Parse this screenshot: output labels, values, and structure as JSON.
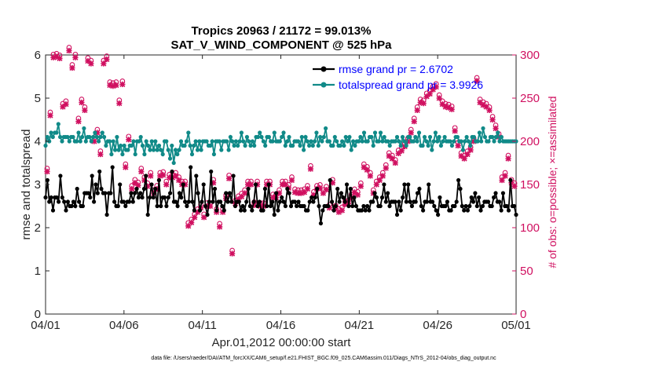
{
  "chart_data": {
    "type": "line",
    "title": "Tropics 20963 / 21172 = 99.013%",
    "subtitle": "SAT_V_WIND_COMPONENT @ 525 hPa",
    "xlabel": "Apr.01,2012 00:00:00 start",
    "ylabel": "rmse and totalspread",
    "y2label": "# of obs: o=possible; ×=assimilated",
    "x_ticks": [
      "04/01",
      "04/06",
      "04/11",
      "04/16",
      "04/21",
      "04/26",
      "05/01"
    ],
    "xlim": [
      0,
      30
    ],
    "ylim": [
      0,
      6
    ],
    "y_ticks": [
      "0",
      "1",
      "2",
      "3",
      "4",
      "5",
      "6"
    ],
    "y2lim": [
      0,
      300
    ],
    "y2_ticks": [
      "0",
      "50",
      "100",
      "150",
      "200",
      "250",
      "300"
    ],
    "footer": "data file: /Users/raeder/DAI/ATM_forcXX/CAM6_setup/f.e21.FHIST_BGC.f09_025.CAM6assim.011/Diags_NTrS_2012-04/obs_diag_output.nc",
    "legend_position": "top-right",
    "series": [
      {
        "name": "rmse grand pr = 2.6702",
        "axis": "left",
        "color": "#000000",
        "values": [
          2.7,
          3.1,
          2.6,
          2.7,
          2.4,
          2.7,
          2.7,
          2.6,
          3.2,
          2.7,
          2.6,
          2.4,
          2.6,
          2.5,
          2.5,
          2.6,
          2.5,
          2.9,
          2.6,
          2.5,
          2.5,
          2.8,
          2.8,
          2.8,
          2.7,
          3.2,
          2.6,
          3.0,
          2.8,
          3.3,
          2.9,
          2.8,
          2.8,
          2.3,
          2.8,
          2.8,
          3.4,
          2.6,
          2.5,
          2.5,
          3.0,
          2.6,
          2.6,
          2.5,
          2.6,
          2.6,
          2.8,
          2.6,
          2.8,
          2.9,
          2.7,
          2.8,
          2.7,
          2.9,
          3.2,
          2.3,
          2.7,
          3.0,
          2.7,
          2.9,
          2.5,
          3.1,
          2.5,
          2.7,
          2.7,
          2.5,
          2.7,
          2.8,
          3.3,
          2.6,
          2.6,
          2.5,
          2.8,
          2.7,
          3.0,
          2.6,
          2.5,
          2.6,
          3.4,
          2.6,
          2.4,
          3.2,
          2.8,
          2.4,
          2.6,
          3.0,
          2.5,
          2.3,
          2.6,
          3.3,
          2.6,
          2.9,
          2.4,
          2.6,
          2.6,
          2.5,
          2.4,
          2.8,
          2.6,
          2.8,
          2.6,
          3.2,
          2.5,
          2.6,
          2.6,
          2.4,
          2.5,
          2.4,
          2.6,
          2.9,
          2.5,
          2.4,
          2.6,
          3.0,
          2.5,
          2.6,
          2.4,
          2.4,
          2.9,
          2.5,
          3.0,
          2.5,
          2.6,
          2.3,
          2.8,
          2.4,
          2.6,
          2.7,
          2.6,
          2.5,
          2.9,
          2.8,
          2.5,
          2.6,
          2.6,
          2.5,
          2.6,
          2.5,
          2.5,
          2.5,
          2.4,
          2.4,
          2.6,
          2.7,
          2.6,
          2.7,
          2.9,
          2.5,
          2.1,
          2.4,
          2.5,
          2.5,
          2.5,
          3.1,
          2.6,
          2.4,
          2.5,
          2.9,
          2.6,
          2.8,
          2.7,
          2.6,
          3.0,
          2.5,
          2.9,
          2.5,
          2.7,
          2.5,
          2.4,
          2.4,
          2.4,
          2.5,
          2.4,
          2.5,
          2.4,
          2.6,
          2.6,
          2.8,
          2.7,
          2.5,
          2.5,
          2.7,
          3.0,
          2.6,
          2.8,
          2.5,
          2.6,
          2.6,
          2.6,
          2.3,
          2.6,
          2.4,
          2.7,
          3.0,
          2.6,
          3.0,
          2.6,
          2.5,
          2.6,
          2.6,
          2.8,
          2.9,
          2.5,
          2.4,
          2.6,
          2.6,
          3.0,
          2.6,
          2.6,
          2.5,
          2.4,
          2.3,
          2.7,
          2.5,
          2.5,
          2.5,
          2.6,
          2.4,
          2.4,
          2.5,
          2.5,
          2.6,
          3.1,
          2.9,
          2.5,
          2.4,
          2.5,
          2.4,
          2.5,
          2.7,
          2.6,
          2.8,
          2.5,
          2.7,
          2.4,
          2.5,
          2.6,
          2.6,
          2.6,
          2.5,
          2.5,
          2.7,
          2.8,
          2.6,
          2.6,
          2.4,
          2.8,
          2.5,
          2.5,
          2.4,
          3.1,
          2.5,
          2.5,
          2.3
        ]
      },
      {
        "name": "totalspread grand pr = 3.9926",
        "axis": "left",
        "color": "#108a88",
        "values": [
          3.9,
          4.1,
          4.0,
          4.2,
          4.1,
          4.2,
          4.2,
          4.4,
          4.1,
          4.0,
          4.1,
          4.1,
          4.1,
          4.0,
          4.1,
          4.1,
          4.0,
          4.0,
          4.2,
          4.0,
          4.1,
          4.3,
          4.0,
          4.1,
          4.1,
          4.0,
          4.1,
          4.2,
          4.1,
          4.0,
          4.1,
          4.2,
          4.1,
          3.9,
          4.0,
          4.0,
          3.7,
          4.0,
          3.8,
          4.1,
          3.8,
          3.9,
          3.7,
          3.9,
          3.8,
          3.8,
          3.9,
          3.9,
          4.0,
          3.7,
          4.0,
          4.0,
          4.1,
          3.9,
          3.7,
          4.0,
          3.9,
          3.8,
          4.0,
          3.8,
          4.0,
          3.8,
          3.9,
          3.8,
          3.7,
          4.0,
          4.0,
          3.8,
          3.6,
          3.9,
          3.5,
          3.8,
          3.7,
          3.8,
          4.0,
          3.9,
          3.9,
          4.0,
          4.2,
          3.9,
          3.7,
          3.9,
          4.0,
          3.8,
          4.0,
          3.8,
          4.0,
          4.0,
          4.0,
          3.9,
          3.9,
          4.0,
          3.7,
          4.0,
          4.0,
          4.0,
          3.8,
          4.0,
          4.0,
          4.0,
          3.8,
          4.1,
          4.0,
          3.9,
          4.0,
          3.9,
          4.0,
          4.2,
          4.0,
          3.9,
          4.1,
          4.0,
          3.9,
          4.0,
          3.9,
          4.1,
          4.1,
          4.2,
          4.1,
          4.0,
          3.9,
          4.1,
          4.1,
          4.0,
          4.0,
          4.2,
          4.0,
          4.0,
          4.0,
          4.1,
          4.2,
          3.9,
          4.0,
          4.1,
          3.9,
          3.9,
          4.0,
          4.0,
          4.0,
          3.9,
          4.1,
          3.8,
          4.1,
          4.0,
          3.9,
          4.0,
          3.9,
          4.0,
          4.2,
          3.9,
          4.1,
          4.0,
          4.1,
          4.3,
          4.0,
          4.0,
          3.9,
          3.9,
          4.1,
          4.0,
          3.9,
          3.9,
          4.0,
          3.9,
          4.1,
          4.0,
          4.1,
          3.8,
          4.0,
          3.9,
          4.0,
          4.0,
          4.1,
          4.0,
          4.2,
          4.0,
          4.0,
          4.1,
          4.1,
          3.9,
          4.2,
          4.0,
          4.0,
          4.2,
          4.0,
          4.1,
          4.0,
          4.0,
          3.9,
          4.0,
          4.0,
          4.0,
          4.1,
          4.0,
          3.9,
          4.1,
          4.0,
          3.9,
          4.1,
          4.1,
          4.0,
          4.0,
          4.1,
          4.0,
          4.2,
          3.9,
          3.9,
          4.1,
          4.0,
          3.9,
          4.1,
          3.8,
          4.0,
          4.2,
          4.0,
          4.1,
          3.9,
          4.0,
          4.1,
          4.0,
          4.0,
          4.0,
          3.9,
          4.0,
          4.1,
          4.1,
          4.0,
          4.0,
          3.8,
          4.0,
          4.1,
          4.0,
          3.9,
          4.1,
          4.1,
          4.0,
          4.0,
          4.2,
          4.0,
          4.3,
          4.1,
          4.0,
          4.0,
          4.1,
          4.1,
          4.0,
          4.1,
          4.2,
          4.0,
          4.1,
          4.0,
          4.0,
          4.0,
          4.0,
          4.0,
          4.0,
          4.0,
          4.0
        ]
      }
    ],
    "obs_markers": {
      "axis": "right",
      "color": "#d01060",
      "points": [
        [
          0.1,
          165
        ],
        [
          0.3,
          230
        ],
        [
          0.5,
          297
        ],
        [
          0.7,
          298
        ],
        [
          0.9,
          296
        ],
        [
          1.1,
          240
        ],
        [
          1.3,
          243
        ],
        [
          1.5,
          305
        ],
        [
          1.7,
          285
        ],
        [
          1.9,
          297
        ],
        [
          2.1,
          223
        ],
        [
          2.3,
          245
        ],
        [
          2.5,
          236
        ],
        [
          2.7,
          293
        ],
        [
          2.9,
          290
        ],
        [
          3.1,
          200
        ],
        [
          3.3,
          210
        ],
        [
          3.5,
          185
        ],
        [
          3.7,
          290
        ],
        [
          3.9,
          295
        ],
        [
          4.1,
          265
        ],
        [
          4.3,
          264
        ],
        [
          4.5,
          265
        ],
        [
          4.7,
          244
        ],
        [
          4.9,
          266
        ],
        [
          5.1,
          170
        ],
        [
          5.3,
          202
        ],
        [
          5.5,
          145
        ],
        [
          5.7,
          152
        ],
        [
          5.9,
          149
        ],
        [
          6.1,
          165
        ],
        [
          6.3,
          155
        ],
        [
          6.5,
          148
        ],
        [
          6.7,
          160
        ],
        [
          6.9,
          140
        ],
        [
          7.1,
          145
        ],
        [
          7.3,
          160
        ],
        [
          7.5,
          161
        ],
        [
          7.7,
          150
        ],
        [
          7.9,
          158
        ],
        [
          8.1,
          158
        ],
        [
          8.3,
          160
        ],
        [
          8.5,
          155
        ],
        [
          8.7,
          150
        ],
        [
          8.9,
          150
        ],
        [
          9.1,
          102
        ],
        [
          9.3,
          106
        ],
        [
          9.5,
          112
        ],
        [
          9.7,
          118
        ],
        [
          9.9,
          123
        ],
        [
          10.1,
          112
        ],
        [
          10.3,
          125
        ],
        [
          10.5,
          125
        ],
        [
          10.7,
          152
        ],
        [
          10.9,
          118
        ],
        [
          11.1,
          101
        ],
        [
          11.3,
          118
        ],
        [
          11.5,
          134
        ],
        [
          11.7,
          157
        ],
        [
          11.9,
          70
        ],
        [
          12.1,
          128
        ],
        [
          12.3,
          133
        ],
        [
          12.5,
          136
        ],
        [
          12.7,
          140
        ],
        [
          12.9,
          150
        ],
        [
          13.1,
          150
        ],
        [
          13.3,
          126
        ],
        [
          13.5,
          150
        ],
        [
          13.7,
          125
        ],
        [
          13.9,
          125
        ],
        [
          14.1,
          150
        ],
        [
          14.3,
          150
        ],
        [
          14.5,
          135
        ],
        [
          14.7,
          135
        ],
        [
          14.9,
          140
        ],
        [
          15.1,
          150
        ],
        [
          15.3,
          150
        ],
        [
          15.5,
          146
        ],
        [
          15.7,
          155
        ],
        [
          15.9,
          141
        ],
        [
          16.1,
          140
        ],
        [
          16.3,
          140
        ],
        [
          16.5,
          141
        ],
        [
          16.7,
          145
        ],
        [
          16.9,
          168
        ],
        [
          17.1,
          138
        ],
        [
          17.3,
          145
        ],
        [
          17.5,
          146
        ],
        [
          17.7,
          140
        ],
        [
          17.9,
          144
        ],
        [
          18.1,
          123
        ],
        [
          18.3,
          152
        ],
        [
          18.5,
          122
        ],
        [
          18.7,
          118
        ],
        [
          18.9,
          120
        ],
        [
          19.1,
          127
        ],
        [
          19.3,
          128
        ],
        [
          19.5,
          135
        ],
        [
          19.7,
          141
        ],
        [
          19.9,
          138
        ],
        [
          20.1,
          148
        ],
        [
          20.3,
          170
        ],
        [
          20.5,
          167
        ],
        [
          20.7,
          160
        ],
        [
          20.9,
          140
        ],
        [
          21.1,
          150
        ],
        [
          21.3,
          155
        ],
        [
          21.5,
          160
        ],
        [
          21.7,
          169
        ],
        [
          21.9,
          183
        ],
        [
          22.1,
          180
        ],
        [
          22.3,
          175
        ],
        [
          22.5,
          186
        ],
        [
          22.7,
          189
        ],
        [
          22.9,
          194
        ],
        [
          23.1,
          200
        ],
        [
          23.3,
          210
        ],
        [
          23.5,
          223
        ],
        [
          23.7,
          236
        ],
        [
          23.9,
          245
        ],
        [
          24.1,
          244
        ],
        [
          24.3,
          252
        ],
        [
          24.5,
          255
        ],
        [
          24.7,
          260
        ],
        [
          24.9,
          263
        ],
        [
          25.1,
          250
        ],
        [
          25.3,
          243
        ],
        [
          25.5,
          240
        ],
        [
          25.7,
          239
        ],
        [
          25.9,
          237
        ],
        [
          26.1,
          212
        ],
        [
          26.3,
          195
        ],
        [
          26.5,
          183
        ],
        [
          26.7,
          180
        ],
        [
          26.9,
          185
        ],
        [
          27.1,
          190
        ],
        [
          27.3,
          200
        ],
        [
          27.5,
          270
        ],
        [
          27.7,
          245
        ],
        [
          27.9,
          242
        ],
        [
          28.1,
          240
        ],
        [
          28.3,
          236
        ],
        [
          28.5,
          225
        ],
        [
          28.7,
          215
        ],
        [
          28.9,
          205
        ],
        [
          29.1,
          155
        ],
        [
          29.3,
          160
        ],
        [
          29.5,
          180
        ],
        [
          29.7,
          152
        ],
        [
          29.9,
          148
        ]
      ]
    }
  }
}
